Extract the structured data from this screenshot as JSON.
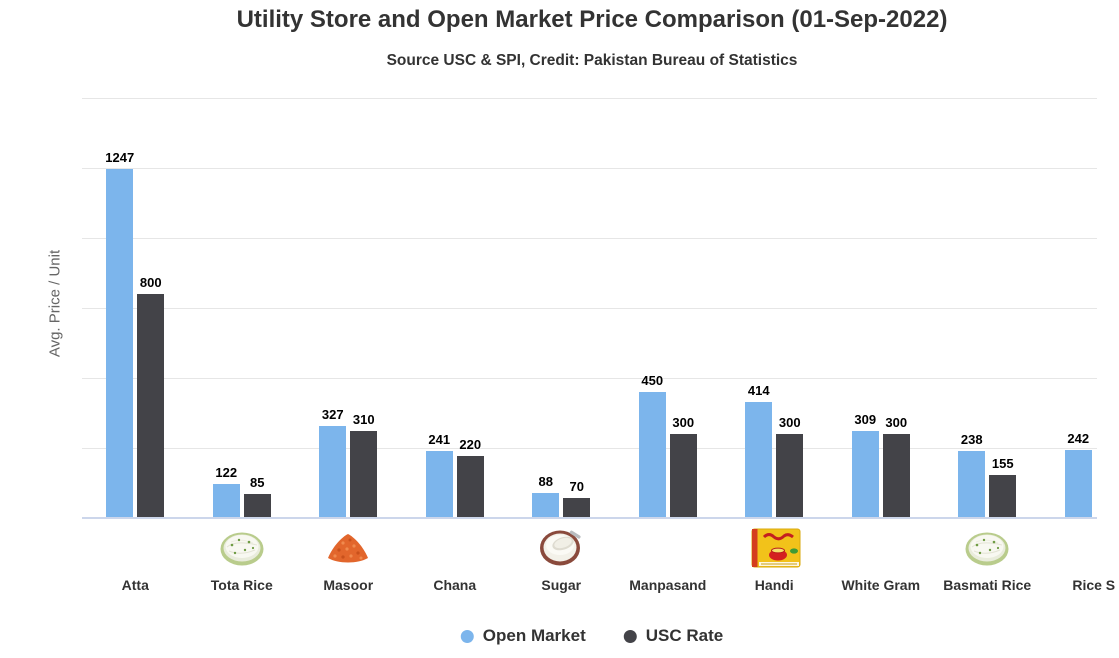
{
  "header": {
    "title": "Utility Store and Open Market Price Comparison (01-Sep-2022)",
    "subtitle": "Source USC & SPI, Credit: Pakistan Bureau of Statistics"
  },
  "chart_data": {
    "type": "bar",
    "title": "Utility Store and Open Market Price Comparison (01-Sep-2022)",
    "subtitle": "Source USC & SPI, Credit: Pakistan Bureau of Statistics",
    "xlabel": "",
    "ylabel": "Avg. Price / Unit",
    "ylim": [
      0,
      1500
    ],
    "gridline_step": 250,
    "grid": true,
    "y_tick_labels_visible": false,
    "legend_position": "bottom",
    "categories": [
      "Atta",
      "Tota Rice",
      "Masoor",
      "Chana",
      "Sugar",
      "Manpasand",
      "Handi",
      "White Gram",
      "Basmati Rice",
      "Rice S"
    ],
    "category_icons": [
      "none",
      "rice-plate",
      "lentils-pile",
      "none",
      "sugar-bowl",
      "none",
      "handi-box",
      "none",
      "rice-plate",
      "none"
    ],
    "series": [
      {
        "name": "Open Market",
        "color": "#7cb5ec",
        "values": [
          1247,
          122,
          327,
          241,
          88,
          450,
          414,
          309,
          238,
          242
        ]
      },
      {
        "name": "USC Rate",
        "color": "#434348",
        "values": [
          800,
          85,
          310,
          220,
          70,
          300,
          300,
          300,
          155,
          null
        ]
      }
    ],
    "colors": {
      "grid": "#e6e6e6",
      "axis_line": "#ccd6eb",
      "title_text": "#333333",
      "axis_title_text": "#666666",
      "value_label_text": "#000000"
    }
  }
}
